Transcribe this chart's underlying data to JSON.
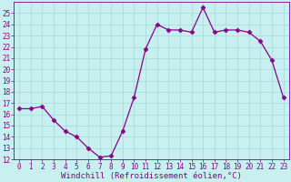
{
  "x": [
    0,
    1,
    2,
    3,
    4,
    5,
    6,
    7,
    8,
    9,
    10,
    11,
    12,
    13,
    14,
    15,
    16,
    17,
    18,
    19,
    20,
    21,
    22,
    23
  ],
  "y": [
    16.5,
    16.5,
    16.7,
    15.5,
    14.5,
    14.0,
    13.0,
    12.2,
    12.3,
    14.5,
    17.5,
    21.8,
    24.0,
    23.5,
    23.5,
    23.3,
    25.5,
    23.3,
    23.5,
    23.5,
    23.3,
    22.5,
    20.8,
    17.5
  ],
  "line_color": "#880088",
  "marker": "D",
  "marker_size": 2.5,
  "bg_color": "#c8f0f0",
  "grid_color": "#aadddd",
  "xlabel": "Windchill (Refroidissement éolien,°C)",
  "ylim": [
    12,
    26
  ],
  "xlim": [
    -0.5,
    23.5
  ],
  "yticks": [
    12,
    13,
    14,
    15,
    16,
    17,
    18,
    19,
    20,
    21,
    22,
    23,
    24,
    25
  ],
  "xticks": [
    0,
    1,
    2,
    3,
    4,
    5,
    6,
    7,
    8,
    9,
    10,
    11,
    12,
    13,
    14,
    15,
    16,
    17,
    18,
    19,
    20,
    21,
    22,
    23
  ],
  "label_fontsize": 6.5,
  "tick_fontsize": 5.5
}
